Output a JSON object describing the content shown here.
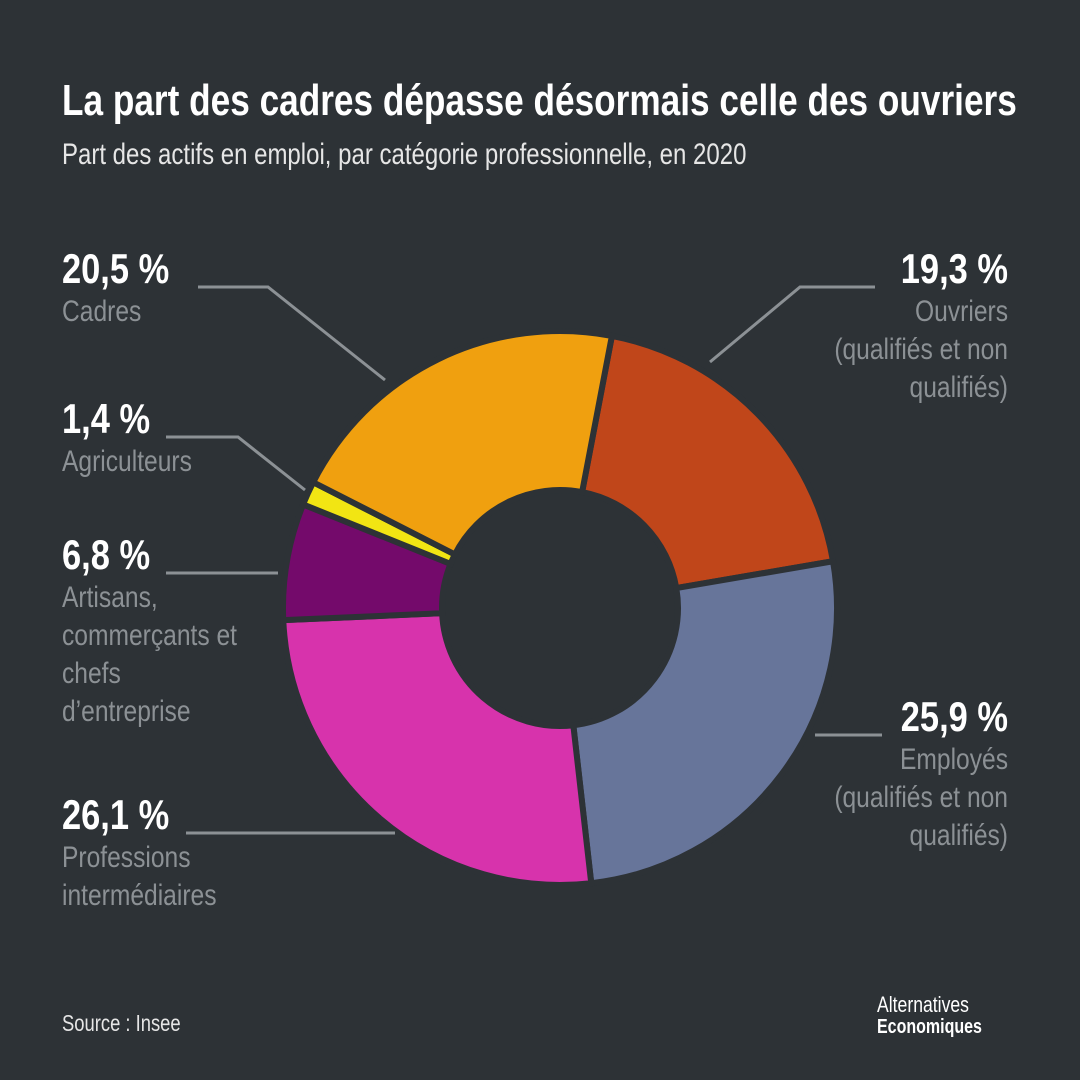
{
  "chart_data": {
    "type": "donut",
    "title": "La part des cadres dépasse désormais celle des ouvriers",
    "subtitle": "Part des actifs en emploi, par catégorie professionnelle, en 2020",
    "categories": [
      "Ouvriers (qualifiés et non qualifiés)",
      "Employés (qualifiés et non qualifiés)",
      "Professions intermédiaires",
      "Artisans, commerçants et chefs d’entreprise",
      "Agriculteurs",
      "Cadres"
    ],
    "values": [
      19.3,
      25.9,
      26.1,
      6.8,
      1.4,
      20.5
    ],
    "value_labels": [
      "19,3 %",
      "25,9 %",
      "26,1 %",
      "6,8 %",
      "1,4 %",
      "20,5 %"
    ],
    "colors": [
      "#c0461a",
      "#67759a",
      "#d733ac",
      "#740a6b",
      "#f2e513",
      "#f0a00f"
    ],
    "source": "Source : Insee"
  },
  "branding": [
    "Alternatives",
    "Economiques"
  ]
}
